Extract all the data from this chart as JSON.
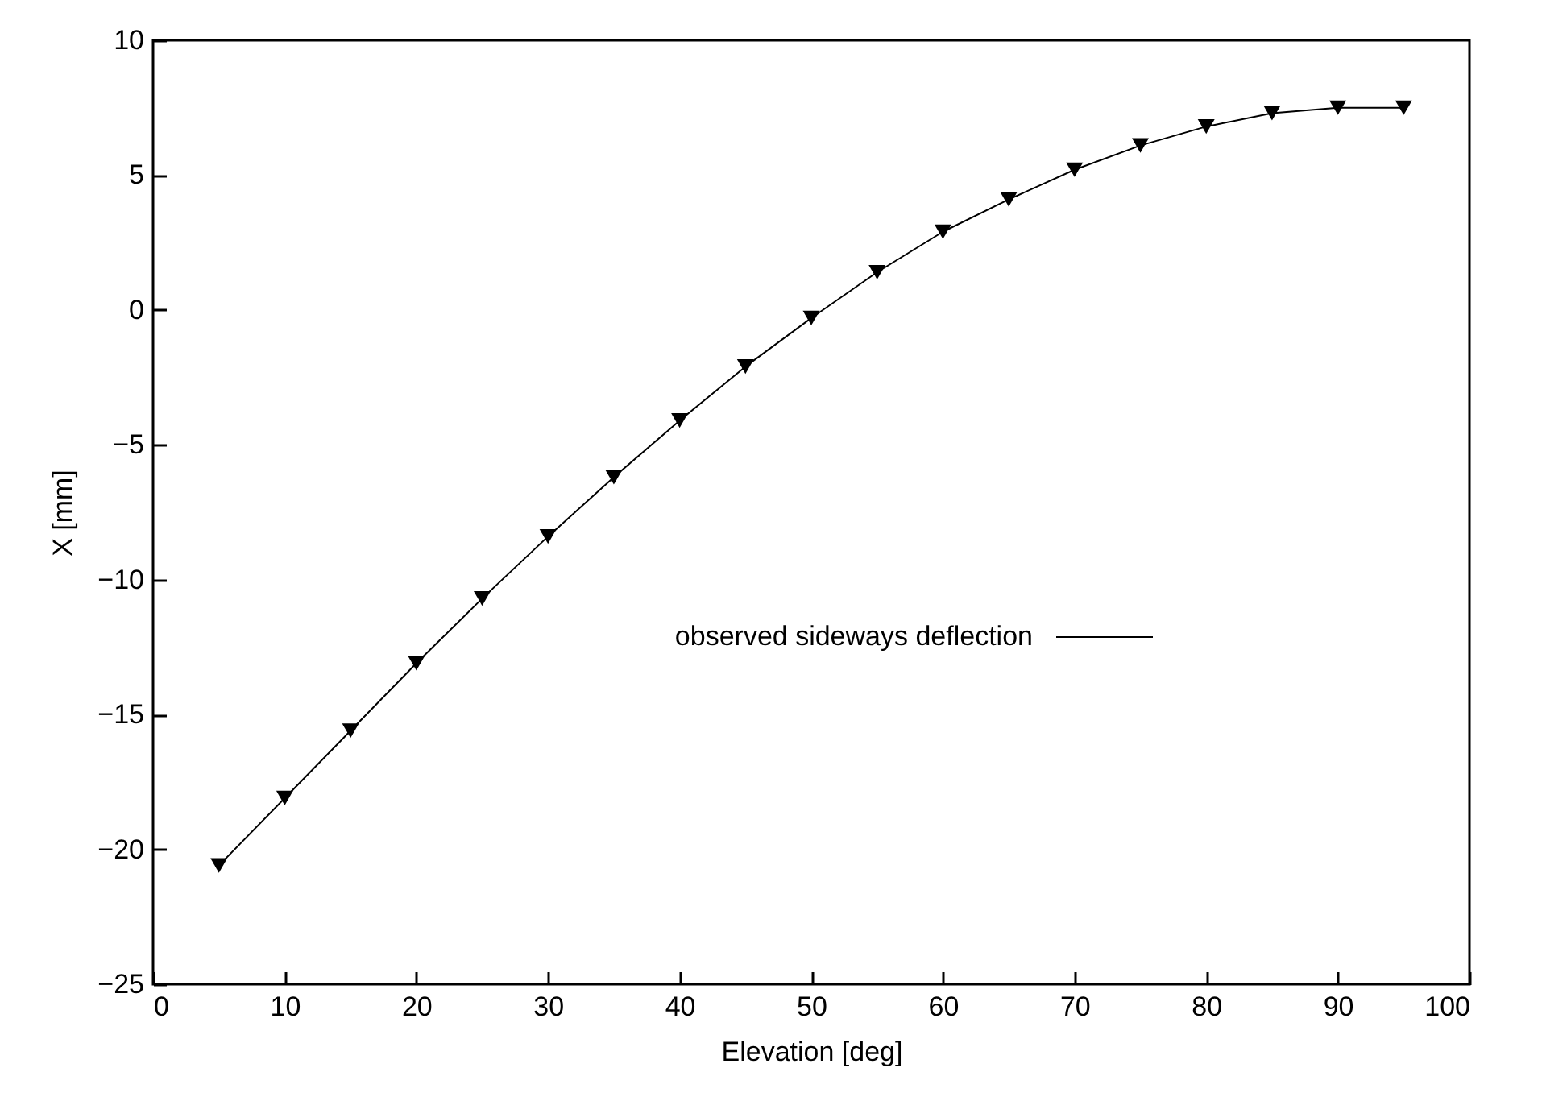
{
  "chart_data": {
    "type": "line",
    "xlabel": "Elevation [deg]",
    "ylabel": "X [mm]",
    "x": [
      5,
      10,
      15,
      20,
      25,
      30,
      35,
      40,
      45,
      50,
      55,
      60,
      65,
      70,
      75,
      80,
      85,
      90,
      95
    ],
    "series": [
      {
        "name": "observed sideways deflection",
        "color": "#000000",
        "values": [
          -20.6,
          -18.1,
          -15.6,
          -13.1,
          -10.7,
          -8.4,
          -6.2,
          -4.1,
          -2.1,
          -0.3,
          1.4,
          2.9,
          4.1,
          5.2,
          6.1,
          6.8,
          7.3,
          7.5,
          7.5
        ]
      }
    ],
    "xlim": [
      0,
      100
    ],
    "xticks": [
      0,
      10,
      20,
      30,
      40,
      50,
      60,
      70,
      80,
      90,
      100
    ],
    "ylim": [
      -25,
      10
    ],
    "yticks": [
      -25,
      -20,
      -15,
      -10,
      -5,
      0,
      5,
      10
    ],
    "marker": "triangle",
    "line_style": "solid",
    "grid": false,
    "legend": "right"
  }
}
